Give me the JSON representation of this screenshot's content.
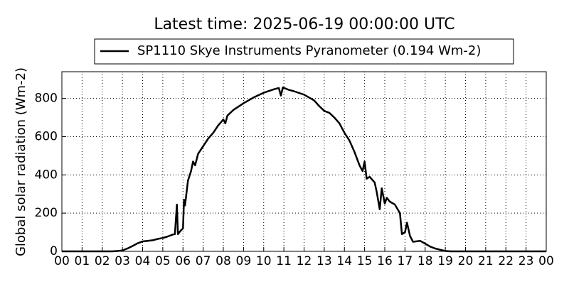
{
  "chart_data": {
    "type": "line",
    "title": "Latest time: 2025-06-19 00:00:00 UTC",
    "y_label": "Global solar radiation (Wm-2)",
    "x": [
      0,
      2.5,
      2.75,
      3.0,
      3.25,
      3.5,
      3.75,
      4.0,
      4.25,
      4.5,
      4.75,
      5.0,
      5.25,
      5.5,
      5.6,
      5.7,
      5.75,
      5.9,
      6.0,
      6.05,
      6.1,
      6.25,
      6.4,
      6.5,
      6.6,
      6.75,
      7.0,
      7.25,
      7.5,
      7.75,
      8.0,
      8.1,
      8.2,
      8.5,
      9.0,
      9.5,
      10.0,
      10.5,
      10.75,
      10.85,
      10.95,
      11.25,
      11.5,
      12.0,
      12.5,
      12.75,
      13.0,
      13.25,
      13.5,
      13.75,
      14.0,
      14.25,
      14.5,
      14.75,
      14.9,
      15.0,
      15.1,
      15.25,
      15.5,
      15.6,
      15.75,
      15.85,
      16.0,
      16.1,
      16.25,
      16.5,
      16.75,
      16.85,
      17.0,
      17.1,
      17.25,
      17.4,
      17.75,
      18.0,
      18.25,
      18.5,
      18.75,
      19.0,
      19.25,
      24
    ],
    "series": [
      {
        "name": "SP1110 Skye Instruments Pyranometer (0.194 Wm-2)",
        "color": "#000000",
        "values": [
          0,
          0,
          2,
          5,
          15,
          28,
          42,
          52,
          55,
          58,
          65,
          70,
          78,
          88,
          90,
          245,
          90,
          110,
          120,
          270,
          240,
          370,
          420,
          470,
          450,
          510,
          550,
          590,
          620,
          660,
          690,
          670,
          710,
          740,
          775,
          805,
          830,
          848,
          855,
          815,
          858,
          845,
          838,
          820,
          790,
          760,
          735,
          725,
          700,
          670,
          620,
          580,
          520,
          450,
          420,
          470,
          380,
          390,
          360,
          310,
          220,
          330,
          250,
          280,
          260,
          245,
          200,
          90,
          100,
          150,
          80,
          50,
          55,
          40,
          25,
          15,
          8,
          2,
          0,
          0
        ]
      }
    ],
    "xlim": [
      0,
      24
    ],
    "ylim": [
      0,
      940
    ],
    "xticks": [
      {
        "value": 0,
        "label": "00"
      },
      {
        "value": 1,
        "label": "01"
      },
      {
        "value": 2,
        "label": "02"
      },
      {
        "value": 3,
        "label": "03"
      },
      {
        "value": 4,
        "label": "04"
      },
      {
        "value": 5,
        "label": "05"
      },
      {
        "value": 6,
        "label": "06"
      },
      {
        "value": 7,
        "label": "07"
      },
      {
        "value": 8,
        "label": "08"
      },
      {
        "value": 9,
        "label": "09"
      },
      10,
      11,
      12,
      13,
      14,
      15,
      16,
      17,
      18,
      19,
      20,
      21,
      22,
      23,
      {
        "value": 24,
        "label": "00"
      }
    ],
    "yticks": [
      0,
      200,
      400,
      600,
      800
    ],
    "grid": true,
    "legend": "top"
  }
}
